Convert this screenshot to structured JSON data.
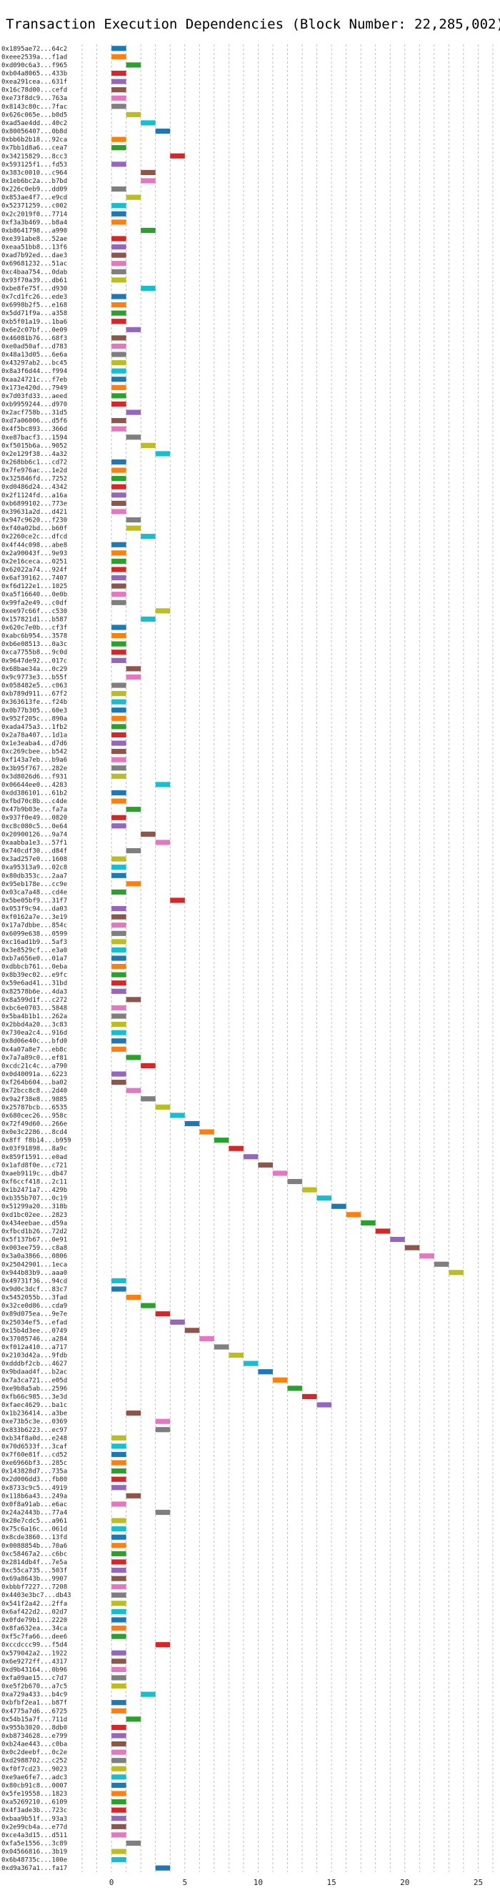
{
  "chart_data": {
    "type": "bar",
    "orientation": "horizontal",
    "title": "Transaction Execution Dependencies (Block Number: 22,285,002)",
    "xlabel": "",
    "ylabel": "",
    "xlim": [
      -2,
      26
    ],
    "xticks": [
      0,
      5,
      10,
      15,
      20,
      25
    ],
    "grid": true,
    "bar_width": 1,
    "palette": [
      "#1f77b4",
      "#ff7f0e",
      "#2ca02c",
      "#d62728",
      "#9467bd",
      "#8c564b",
      "#e377c2",
      "#7f7f7f",
      "#bcbd22",
      "#17becf"
    ],
    "transactions": [
      {
        "label": "0x1895ae72...64c2",
        "start": 0
      },
      {
        "label": "0xeee2539a...f1ad",
        "start": 0
      },
      {
        "label": "0xd090c6a3...f965",
        "start": 1
      },
      {
        "label": "0xb04a8065...433b",
        "start": 0
      },
      {
        "label": "0xea291cea...631f",
        "start": 0
      },
      {
        "label": "0x16c78d00...cefd",
        "start": 0
      },
      {
        "label": "0xe73f8dc9...763a",
        "start": 0
      },
      {
        "label": "0x8143c80c...7fac",
        "start": 0
      },
      {
        "label": "0x626c065e...b0d5",
        "start": 1
      },
      {
        "label": "0xad5ae4dd...40c2",
        "start": 2
      },
      {
        "label": "0x80056407...0b8d",
        "start": 3
      },
      {
        "label": "0xbb6b2b18...92ca",
        "start": 0
      },
      {
        "label": "0x7bb1d8a6...cea7",
        "start": 0
      },
      {
        "label": "0x34215829...8cc3",
        "start": 4
      },
      {
        "label": "0x593125f1...fd53",
        "start": 0
      },
      {
        "label": "0x383c0010...c964",
        "start": 2
      },
      {
        "label": "0x1eb6bc2a...b7bd",
        "start": 2
      },
      {
        "label": "0x226c0eb9...dd09",
        "start": 0
      },
      {
        "label": "0x853ae4f7...e9cd",
        "start": 1
      },
      {
        "label": "0x52371259...c002",
        "start": 0
      },
      {
        "label": "0x2c2019f0...7714",
        "start": 0
      },
      {
        "label": "0xf3a3b469...b8a4",
        "start": 0
      },
      {
        "label": "0xb8641798...a990",
        "start": 2
      },
      {
        "label": "0xe391abe8...52ae",
        "start": 0
      },
      {
        "label": "0xeaa51bb8...13f6",
        "start": 0
      },
      {
        "label": "0xad7b92ed...dae3",
        "start": 0
      },
      {
        "label": "0x69681232...51ac",
        "start": 0
      },
      {
        "label": "0xc4baa754...0dab",
        "start": 0
      },
      {
        "label": "0x93f70a39...db61",
        "start": 0
      },
      {
        "label": "0xbe8fe75f...d930",
        "start": 2
      },
      {
        "label": "0x7cd1fc26...ede3",
        "start": 0
      },
      {
        "label": "0x6998b2f5...e168",
        "start": 0
      },
      {
        "label": "0x5dd71f9a...a358",
        "start": 0
      },
      {
        "label": "0xb5f01a19...1ba6",
        "start": 0
      },
      {
        "label": "0x6e2c07bf...0e09",
        "start": 1
      },
      {
        "label": "0x46081b76...68f3",
        "start": 0
      },
      {
        "label": "0xe0ad50af...d783",
        "start": 0
      },
      {
        "label": "0x48a13d05...6e6a",
        "start": 0
      },
      {
        "label": "0x43297ab2...bc45",
        "start": 0
      },
      {
        "label": "0x8a3f6d44...f994",
        "start": 0
      },
      {
        "label": "0xaa24721c...f7eb",
        "start": 0
      },
      {
        "label": "0x173e420d...7949",
        "start": 0
      },
      {
        "label": "0x7d03fd33...aeed",
        "start": 0
      },
      {
        "label": "0xb9959244...d970",
        "start": 0
      },
      {
        "label": "0x2acf758b...31d5",
        "start": 1
      },
      {
        "label": "0xd7a06006...d5f6",
        "start": 0
      },
      {
        "label": "0x4f5bc893...366d",
        "start": 0
      },
      {
        "label": "0xe87bacf3...1594",
        "start": 1
      },
      {
        "label": "0xf5015b6a...9052",
        "start": 2
      },
      {
        "label": "0x2e129f38...4a32",
        "start": 3
      },
      {
        "label": "0x268bb6c1...cd72",
        "start": 0
      },
      {
        "label": "0x7fe976ac...1e2d",
        "start": 0
      },
      {
        "label": "0x325846fd...7252",
        "start": 0
      },
      {
        "label": "0xd0486d24...4342",
        "start": 0
      },
      {
        "label": "0x2f1124fd...a16a",
        "start": 0
      },
      {
        "label": "0xb6899102...773e",
        "start": 0
      },
      {
        "label": "0x39631a2d...d421",
        "start": 0
      },
      {
        "label": "0x947c9620...f230",
        "start": 1
      },
      {
        "label": "0xf40a02bd...b60f",
        "start": 1
      },
      {
        "label": "0x2260ce2c...dfcd",
        "start": 2
      },
      {
        "label": "0x4f44c098...abe8",
        "start": 0
      },
      {
        "label": "0x2a90043f...9e93",
        "start": 0
      },
      {
        "label": "0x2e16ceca...0251",
        "start": 0
      },
      {
        "label": "0x62022a74...924f",
        "start": 0
      },
      {
        "label": "0x6af39162...7407",
        "start": 0
      },
      {
        "label": "0xf6d122e1...1025",
        "start": 0
      },
      {
        "label": "0xa5f16640...0e0b",
        "start": 0
      },
      {
        "label": "0x99fa2e49...c0df",
        "start": 0
      },
      {
        "label": "0xee97c66f...c530",
        "start": 3
      },
      {
        "label": "0x157821d1...b587",
        "start": 2
      },
      {
        "label": "0x620c7e0b...cf3f",
        "start": 0
      },
      {
        "label": "0xabc6b954...3578",
        "start": 0
      },
      {
        "label": "0xb6e08513...0a3c",
        "start": 0
      },
      {
        "label": "0xca7755b8...9c0d",
        "start": 0
      },
      {
        "label": "0x9647de92...017c",
        "start": 0
      },
      {
        "label": "0x68bae34a...0c29",
        "start": 1
      },
      {
        "label": "0x9c9773e3...b55f",
        "start": 1
      },
      {
        "label": "0x058482e5...c063",
        "start": 0
      },
      {
        "label": "0xb789d911...67f2",
        "start": 0
      },
      {
        "label": "0x363613fe...f24b",
        "start": 0
      },
      {
        "label": "0x0b77b305...60e3",
        "start": 0
      },
      {
        "label": "0x952f205c...890a",
        "start": 0
      },
      {
        "label": "0xada475a3...1fb2",
        "start": 0
      },
      {
        "label": "0x2a78a407...1d1a",
        "start": 0
      },
      {
        "label": "0x1e3eaba4...d7d6",
        "start": 0
      },
      {
        "label": "0xc269cbee...b542",
        "start": 0
      },
      {
        "label": "0xf143a7eb...b9a6",
        "start": 0
      },
      {
        "label": "0x3b95f767...282e",
        "start": 0
      },
      {
        "label": "0x3d8026d6...f931",
        "start": 0
      },
      {
        "label": "0x06644ee0...4283",
        "start": 3
      },
      {
        "label": "0xdd386101...61b2",
        "start": 0
      },
      {
        "label": "0xfbd70c8b...c4de",
        "start": 0
      },
      {
        "label": "0x47b9b03e...fa7a",
        "start": 1
      },
      {
        "label": "0x937f0e49...0820",
        "start": 0
      },
      {
        "label": "0xc8c080c5...0e64",
        "start": 0
      },
      {
        "label": "0x20900126...9a74",
        "start": 2
      },
      {
        "label": "0xaabba1e3...57f1",
        "start": 3
      },
      {
        "label": "0x740cdf30...d84f",
        "start": 1
      },
      {
        "label": "0x3ad257e0...1608",
        "start": 0
      },
      {
        "label": "0xa95313a9...02c8",
        "start": 0
      },
      {
        "label": "0x80db353c...2aa7",
        "start": 0
      },
      {
        "label": "0x95eb178e...cc9e",
        "start": 1
      },
      {
        "label": "0x03ca7a48...cd4e",
        "start": 0
      },
      {
        "label": "0x5be05bf9...31f7",
        "start": 4
      },
      {
        "label": "0x053f9c94...da03",
        "start": 0
      },
      {
        "label": "0xf0162a7e...3e19",
        "start": 0
      },
      {
        "label": "0x17a7dbbe...854c",
        "start": 0
      },
      {
        "label": "0x6099e638...0599",
        "start": 0
      },
      {
        "label": "0xc16ad1b9...5af3",
        "start": 0
      },
      {
        "label": "0x3e8529cf...e3a0",
        "start": 0
      },
      {
        "label": "0xb7a656e0...01a7",
        "start": 0
      },
      {
        "label": "0xdbbcb761...0eba",
        "start": 0
      },
      {
        "label": "0x8b39ec02...e9fc",
        "start": 0
      },
      {
        "label": "0x59e6ad41...31bd",
        "start": 0
      },
      {
        "label": "0x82578b6e...4da3",
        "start": 0
      },
      {
        "label": "0x8a599d1f...c272",
        "start": 1
      },
      {
        "label": "0xbc6e0703...5848",
        "start": 0
      },
      {
        "label": "0x5ba4b1b1...262a",
        "start": 0
      },
      {
        "label": "0x2bbd4a20...3c83",
        "start": 0
      },
      {
        "label": "0x730ea2c4...916d",
        "start": 0
      },
      {
        "label": "0x8d06e40c...bfd0",
        "start": 0
      },
      {
        "label": "0x4a07a8e7...eb8c",
        "start": 0
      },
      {
        "label": "0x7a7a89c0...ef81",
        "start": 1
      },
      {
        "label": "0xcdc21c4c...a790",
        "start": 2
      },
      {
        "label": "0x0d40091a...6223",
        "start": 0
      },
      {
        "label": "0xf264b604...ba02",
        "start": 0
      },
      {
        "label": "0x72bcc8c8...2d40",
        "start": 1
      },
      {
        "label": "0x9a2f38e8...9885",
        "start": 2
      },
      {
        "label": "0x25787bcb...6535",
        "start": 3
      },
      {
        "label": "0x680cec26...958c",
        "start": 4
      },
      {
        "label": "0x72f49d60...266e",
        "start": 5
      },
      {
        "label": "0x0e3c2286...8cd4",
        "start": 6
      },
      {
        "label": "0x8ff f8b14...b959",
        "start": 7
      },
      {
        "label": "0x03f91898...8a9c",
        "start": 8
      },
      {
        "label": "0x859f1591...e0ad",
        "start": 9
      },
      {
        "label": "0x1afd8f0e...c721",
        "start": 10
      },
      {
        "label": "0xaeb9119c...db47",
        "start": 11
      },
      {
        "label": "0xf6ccf418...2c11",
        "start": 12
      },
      {
        "label": "0x1b2471a7...429b",
        "start": 13
      },
      {
        "label": "0xb355b707...0c19",
        "start": 14
      },
      {
        "label": "0x51299a20...318b",
        "start": 15
      },
      {
        "label": "0xd1bc02ee...2823",
        "start": 16
      },
      {
        "label": "0x434eebae...d59a",
        "start": 17
      },
      {
        "label": "0xfbcd1b26...72d2",
        "start": 18
      },
      {
        "label": "0x5f137b67...0e91",
        "start": 19
      },
      {
        "label": "0x003ee759...c8a8",
        "start": 20
      },
      {
        "label": "0x3a0a3866...0806",
        "start": 21
      },
      {
        "label": "0x25042901...1eca",
        "start": 22
      },
      {
        "label": "0x944b83b9...aaa0",
        "start": 23
      },
      {
        "label": "0x49731f36...94cd",
        "start": 0
      },
      {
        "label": "0x9d0c3dcf...83c7",
        "start": 0
      },
      {
        "label": "0x5452055b...3fad",
        "start": 1
      },
      {
        "label": "0x32ce0d86...cda9",
        "start": 2
      },
      {
        "label": "0x89d075ea...9e7e",
        "start": 3
      },
      {
        "label": "0x25034ef5...efad",
        "start": 4
      },
      {
        "label": "0x15b4d3ee...0749",
        "start": 5
      },
      {
        "label": "0x37085746...a284",
        "start": 6
      },
      {
        "label": "0xf012a410...a717",
        "start": 7
      },
      {
        "label": "0x2103d42a...9fdb",
        "start": 8
      },
      {
        "label": "0xdddbf2cb...4627",
        "start": 9
      },
      {
        "label": "0x9bdaad4f...b2ac",
        "start": 10
      },
      {
        "label": "0x7a3ca721...e05d",
        "start": 11
      },
      {
        "label": "0xe9b8a5ab...2596",
        "start": 12
      },
      {
        "label": "0xfb66c985...3e3d",
        "start": 13
      },
      {
        "label": "0xfaec4629...ba1c",
        "start": 14
      },
      {
        "label": "0x1b236414...a3be",
        "start": 1
      },
      {
        "label": "0xe73b5c3e...0369",
        "start": 3
      },
      {
        "label": "0x833b6223...ec97",
        "start": 3
      },
      {
        "label": "0xb34f8a0d...e248",
        "start": 0
      },
      {
        "label": "0x70d6533f...3caf",
        "start": 0
      },
      {
        "label": "0x7f60e81f...cd52",
        "start": 0
      },
      {
        "label": "0xe6966bf3...285c",
        "start": 0
      },
      {
        "label": "0x143828d7...735a",
        "start": 0
      },
      {
        "label": "0x2d006dd3...fb80",
        "start": 0
      },
      {
        "label": "0x8733c9c5...4919",
        "start": 0
      },
      {
        "label": "0x118b6a43...249a",
        "start": 1
      },
      {
        "label": "0x0f8a91ab...e6ac",
        "start": 0
      },
      {
        "label": "0x24a2443b...77a4",
        "start": 3
      },
      {
        "label": "0x28e7cdc5...a961",
        "start": 0
      },
      {
        "label": "0x75c6a16c...061d",
        "start": 0
      },
      {
        "label": "0x8cde3860...13fd",
        "start": 0
      },
      {
        "label": "0x0088854b...70a6",
        "start": 0
      },
      {
        "label": "0xc58467a2...c6bc",
        "start": 0
      },
      {
        "label": "0x2814db4f...7e5a",
        "start": 0
      },
      {
        "label": "0xc55ca735...503f",
        "start": 0
      },
      {
        "label": "0x69a8643b...9907",
        "start": 0
      },
      {
        "label": "0xbbbf7227...7208",
        "start": 0
      },
      {
        "label": "0x4403e3bc7...db43",
        "start": 0
      },
      {
        "label": "0x541f2a42...2ffa",
        "start": 0
      },
      {
        "label": "0x6af422d2...02d7",
        "start": 0
      },
      {
        "label": "0x0fde79b1...2220",
        "start": 0
      },
      {
        "label": "0x8fa632ea...34ca",
        "start": 0
      },
      {
        "label": "0xf5c7fa66...dee6",
        "start": 0
      },
      {
        "label": "0xccdccc99...f5d4",
        "start": 3
      },
      {
        "label": "0x579042a2...1922",
        "start": 0
      },
      {
        "label": "0x6e9272ff...4317",
        "start": 0
      },
      {
        "label": "0xd9b43164...0b96",
        "start": 0
      },
      {
        "label": "0xfa09ae15...c7d7",
        "start": 0
      },
      {
        "label": "0xe5f2b670...a7c5",
        "start": 0
      },
      {
        "label": "0xa729a433...b4c9",
        "start": 2
      },
      {
        "label": "0xbfbf2ea1...b87f",
        "start": 0
      },
      {
        "label": "0x4775a7d6...6725",
        "start": 0
      },
      {
        "label": "0x54b15a7f...711d",
        "start": 1
      },
      {
        "label": "0x955b3020...8db0",
        "start": 0
      },
      {
        "label": "0xb8734628...e799",
        "start": 0
      },
      {
        "label": "0xb24ae443...c0ba",
        "start": 0
      },
      {
        "label": "0x0c2deebf...0c2e",
        "start": 0
      },
      {
        "label": "0xd2988702...c252",
        "start": 0
      },
      {
        "label": "0xf0f7cd23...9023",
        "start": 0
      },
      {
        "label": "0xe9ae6fe7...adc3",
        "start": 0
      },
      {
        "label": "0x80cb91c8...0007",
        "start": 0
      },
      {
        "label": "0x5fe19558...1823",
        "start": 0
      },
      {
        "label": "0xa5269210...6109",
        "start": 0
      },
      {
        "label": "0x4f3ade3b...723c",
        "start": 0
      },
      {
        "label": "0xbaa9b51f...93a3",
        "start": 0
      },
      {
        "label": "0x2e99cb4a...e77d",
        "start": 0
      },
      {
        "label": "0xce4a3d15...d511",
        "start": 0
      },
      {
        "label": "0xfa5e1556...3c89",
        "start": 1
      },
      {
        "label": "0x04566816...3b19",
        "start": 0
      },
      {
        "label": "0x6b48735c...100e",
        "start": 0
      },
      {
        "label": "0xd9a367a1...fa17",
        "start": 3
      }
    ]
  }
}
